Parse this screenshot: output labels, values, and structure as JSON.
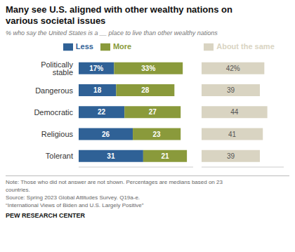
{
  "chart_data": [
    {
      "type": "bar",
      "orientation": "horizontal",
      "stacked": true,
      "title": "Many see U.S. aligned with other wealthy nations on\nvarious societal issues",
      "subtitle": "% who say the United States is a __ place to live than other wealthy nations",
      "annotations": [
        "Note: Those who did not answer are not shown. Percentages are medians based on 23\ncountries.\nSource: Spring 2023 Global Attitudes Survey. Q19a-e.\n“International Views of Biden and U.S. Largely Positive”",
        "PEW RESEARCH CENTER"
      ],
      "categories": [
        "Politically stable",
        "Dangerous",
        "Democratic",
        "Religious",
        "Tolerant"
      ],
      "series": [
        {
          "name": "Less",
          "color": "#2f6196",
          "values": [
            17,
            18,
            22,
            26,
            31
          ],
          "value_labels": [
            "17%",
            "18",
            "22",
            "26",
            "31"
          ]
        },
        {
          "name": "More",
          "color": "#8a9a3b",
          "values": [
            33,
            28,
            27,
            23,
            21
          ],
          "value_labels": [
            "33%",
            "28",
            "27",
            "23",
            "21"
          ]
        }
      ],
      "xlim": [
        0,
        55
      ],
      "data_labels": true,
      "tick_labels": "y",
      "grid": false,
      "legend": "top"
    },
    {
      "type": "bar",
      "orientation": "horizontal",
      "stacked": false,
      "categories": [
        "Politically stable",
        "Dangerous",
        "Democratic",
        "Religious",
        "Tolerant"
      ],
      "series": [
        {
          "name": "About the same",
          "color": "#d9d4c2",
          "values": [
            42,
            39,
            44,
            41,
            39
          ],
          "value_labels": [
            "42%",
            "39",
            "44",
            "41",
            "39"
          ]
        }
      ],
      "xlim": [
        0,
        55
      ],
      "data_labels": true,
      "tick_labels": false,
      "grid": false,
      "legend": "top"
    }
  ]
}
